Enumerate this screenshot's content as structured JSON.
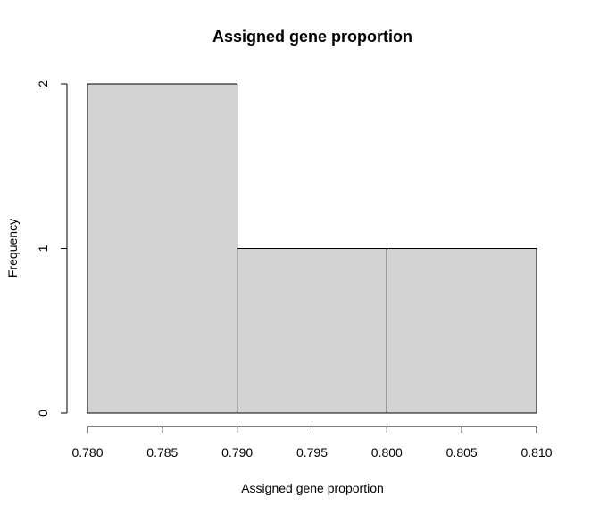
{
  "chart_data": {
    "type": "bar",
    "subtype": "histogram",
    "title": "Assigned gene proportion",
    "xlabel": "Assigned gene proportion",
    "ylabel": "Frequency",
    "bins": [
      {
        "start": 0.78,
        "end": 0.79,
        "count": 2
      },
      {
        "start": 0.79,
        "end": 0.8,
        "count": 1
      },
      {
        "start": 0.8,
        "end": 0.81,
        "count": 1
      }
    ],
    "xlim": [
      0.78,
      0.81
    ],
    "ylim": [
      0,
      2
    ],
    "x_ticks": [
      "0.780",
      "0.785",
      "0.790",
      "0.795",
      "0.800",
      "0.805",
      "0.810"
    ],
    "y_ticks": [
      "0",
      "1",
      "2"
    ],
    "grid": false,
    "legend": "none",
    "bar_fill": "#d3d3d3",
    "bar_edge": "#000000"
  }
}
